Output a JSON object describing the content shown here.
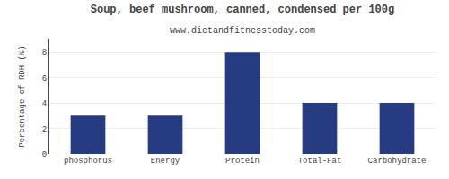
{
  "chart_data": {
    "type": "bar",
    "title": "Soup, beef mushroom, canned, condensed per 100g",
    "subtitle": "www.dietandfitnesstoday.com",
    "categories": [
      "phosphorus",
      "Energy",
      "Protein",
      "Total-Fat",
      "Carbohydrate"
    ],
    "values": [
      3.0,
      3.0,
      8.0,
      4.0,
      4.0
    ],
    "color": "#253c82",
    "ylabel": "Percentage of RDH (%)",
    "ylim": [
      0,
      9
    ],
    "yticks": [
      0,
      2,
      4,
      6,
      8
    ],
    "grid": true
  }
}
